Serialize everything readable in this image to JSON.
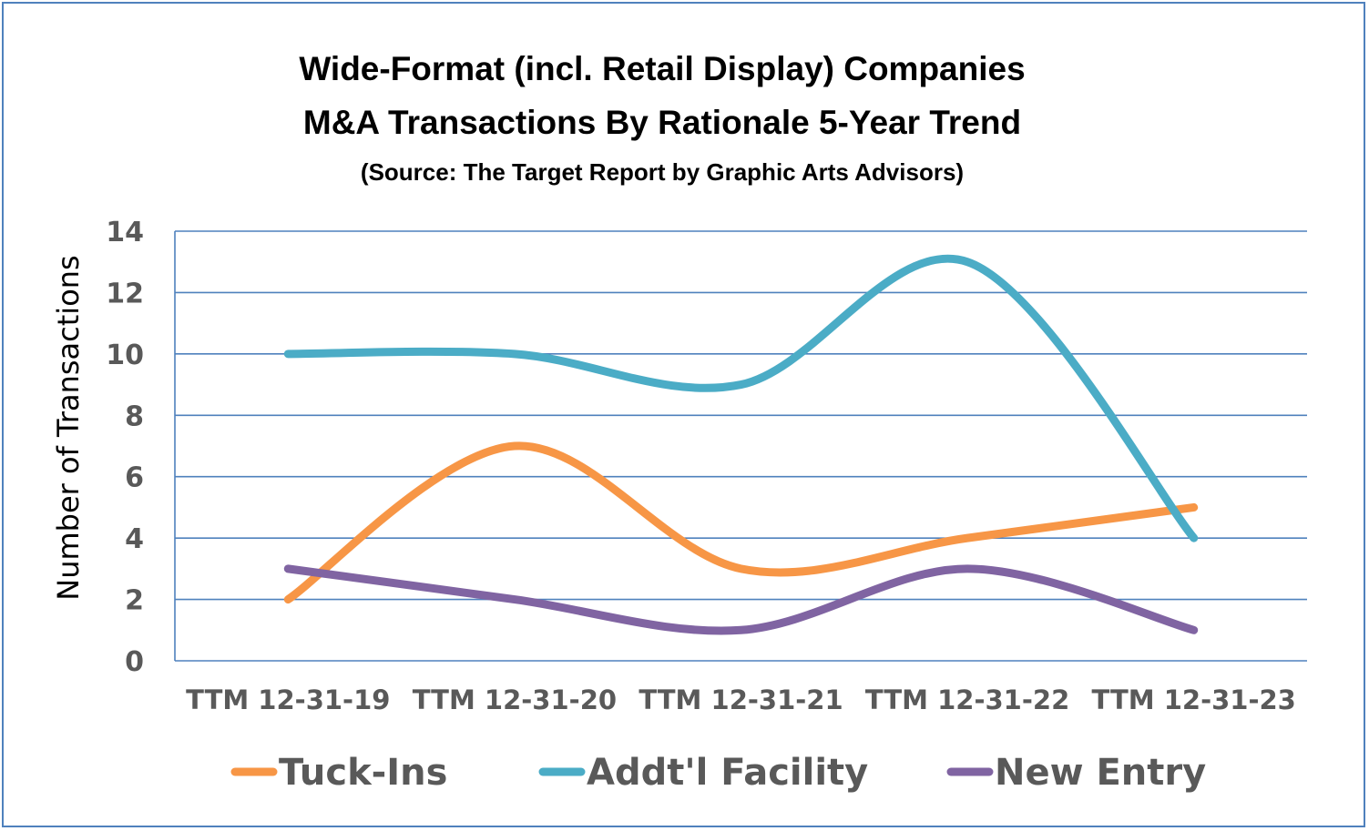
{
  "chart_data": {
    "type": "line",
    "title": "Wide-Format (incl. Retail Display) Companies",
    "title_line2": "M&A Transactions By Rationale 5-Year Trend",
    "subtitle": "(Source: The Target Report by Graphic Arts Advisors)",
    "xlabel": "",
    "ylabel": "Number of Transactions",
    "categories": [
      "TTM 12-31-19",
      "TTM 12-31-20",
      "TTM 12-31-21",
      "TTM 12-31-22",
      "TTM 12-31-23"
    ],
    "y_ticks": [
      "0",
      "2",
      "4",
      "6",
      "8",
      "10",
      "12",
      "14"
    ],
    "ylim": [
      0,
      14
    ],
    "grid": true,
    "smooth": true,
    "legend_position": "bottom",
    "series": [
      {
        "name": "Tuck-Ins",
        "values": [
          2,
          7,
          3,
          4,
          5
        ],
        "color": "#f79646"
      },
      {
        "name": "Addt'l Facility",
        "values": [
          10,
          10,
          9,
          13,
          4
        ],
        "color": "#4bacc6"
      },
      {
        "name": "New Entry",
        "values": [
          3,
          2,
          1,
          3,
          1
        ],
        "color": "#8064a2"
      }
    ],
    "frame_color": "#4f81bd",
    "grid_color": "#4f81bd"
  }
}
